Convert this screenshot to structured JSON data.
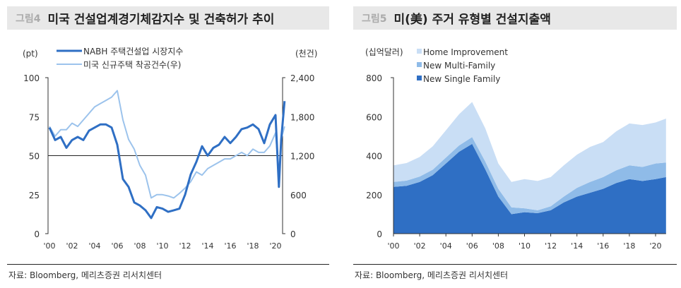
{
  "left_panel": {
    "fig_label": "그림4",
    "title": "미국 건설업계경기체감지수 및 건축허가 추이",
    "source": "자료: Bloomberg, 메리츠증권 리서치센터"
  },
  "right_panel": {
    "fig_label": "그림5",
    "title": "미(美) 주거 유형별 건설지출액",
    "source": "자료: Bloomberg, 메리츠증권 리서치센터"
  },
  "chart_data": [
    {
      "type": "line",
      "title": "미국 건설업계경기체감지수 및 건축허가 추이",
      "ylabel": "(pt)",
      "y2label": "(천건)",
      "ylim": [
        0,
        100
      ],
      "y2lim": [
        0,
        2400
      ],
      "yticks": [
        "0",
        "25",
        "50",
        "75",
        "100"
      ],
      "y2ticks": [
        "0",
        "600",
        "1,200",
        "1,800",
        "2,400"
      ],
      "xticks": [
        "'00",
        "'02",
        "'04",
        "'06",
        "'08",
        "'10",
        "'12",
        "'14",
        "'16",
        "'18",
        "'20"
      ],
      "reference_line": 50,
      "x": [
        2000,
        2000.5,
        2001,
        2001.5,
        2002,
        2002.5,
        2003,
        2003.5,
        2004,
        2004.5,
        2005,
        2005.5,
        2006,
        2006.5,
        2007,
        2007.5,
        2008,
        2008.5,
        2009,
        2009.5,
        2010,
        2010.5,
        2011,
        2011.5,
        2012,
        2012.5,
        2013,
        2013.5,
        2014,
        2014.5,
        2015,
        2015.5,
        2016,
        2016.5,
        2017,
        2017.5,
        2018,
        2018.5,
        2019,
        2019.5,
        2020,
        2020.3,
        2020.5,
        2020.8
      ],
      "series": [
        {
          "name": "NABH 주택건설업 시장지수",
          "axis": "left",
          "color": "#2f6fc4",
          "values": [
            68,
            60,
            62,
            55,
            60,
            62,
            60,
            66,
            68,
            70,
            70,
            68,
            57,
            35,
            30,
            20,
            18,
            15,
            10,
            17,
            16,
            14,
            15,
            16,
            25,
            38,
            46,
            56,
            50,
            55,
            57,
            62,
            58,
            62,
            67,
            68,
            70,
            67,
            58,
            70,
            76,
            30,
            60,
            85
          ]
        },
        {
          "name": "미국 신규주택 착공건수(우)",
          "axis": "right",
          "color": "#9cc3ec",
          "values": [
            1650,
            1500,
            1600,
            1600,
            1700,
            1650,
            1750,
            1850,
            1950,
            2000,
            2050,
            2100,
            2200,
            1750,
            1450,
            1300,
            1050,
            900,
            550,
            600,
            600,
            580,
            550,
            620,
            700,
            800,
            950,
            900,
            1000,
            1050,
            1100,
            1150,
            1150,
            1200,
            1250,
            1200,
            1300,
            1250,
            1250,
            1350,
            1550,
            950,
            1450,
            1650
          ]
        }
      ]
    },
    {
      "type": "area",
      "stacked": true,
      "title": "미(美) 주거 유형별 건설지출액",
      "ylabel": "(십억달러)",
      "ylim": [
        0,
        800
      ],
      "yticks": [
        "0",
        "200",
        "400",
        "600",
        "800"
      ],
      "xticks": [
        "'00",
        "'02",
        "'04",
        "'06",
        "'08",
        "'10",
        "'12",
        "'14",
        "'16",
        "'18",
        "'20"
      ],
      "x": [
        2000,
        2001,
        2002,
        2003,
        2004,
        2005,
        2006,
        2007,
        2008,
        2009,
        2010,
        2011,
        2012,
        2013,
        2014,
        2015,
        2016,
        2017,
        2018,
        2019,
        2020,
        2020.8
      ],
      "series": [
        {
          "name": "New Single Family",
          "color": "#2f6fc4",
          "values": [
            240,
            245,
            265,
            300,
            360,
            420,
            460,
            330,
            190,
            100,
            110,
            105,
            120,
            160,
            190,
            210,
            230,
            260,
            280,
            270,
            280,
            290
          ]
        },
        {
          "name": "New Multi-Family",
          "color": "#8fbbe8",
          "values": [
            25,
            27,
            28,
            28,
            30,
            32,
            35,
            40,
            40,
            35,
            20,
            15,
            20,
            30,
            45,
            55,
            60,
            65,
            70,
            72,
            80,
            75
          ]
        },
        {
          "name": "Home Improvement",
          "color": "#c9def5",
          "values": [
            85,
            90,
            100,
            120,
            140,
            160,
            180,
            170,
            130,
            130,
            150,
            150,
            150,
            160,
            170,
            180,
            180,
            200,
            215,
            215,
            210,
            225
          ]
        }
      ]
    }
  ]
}
